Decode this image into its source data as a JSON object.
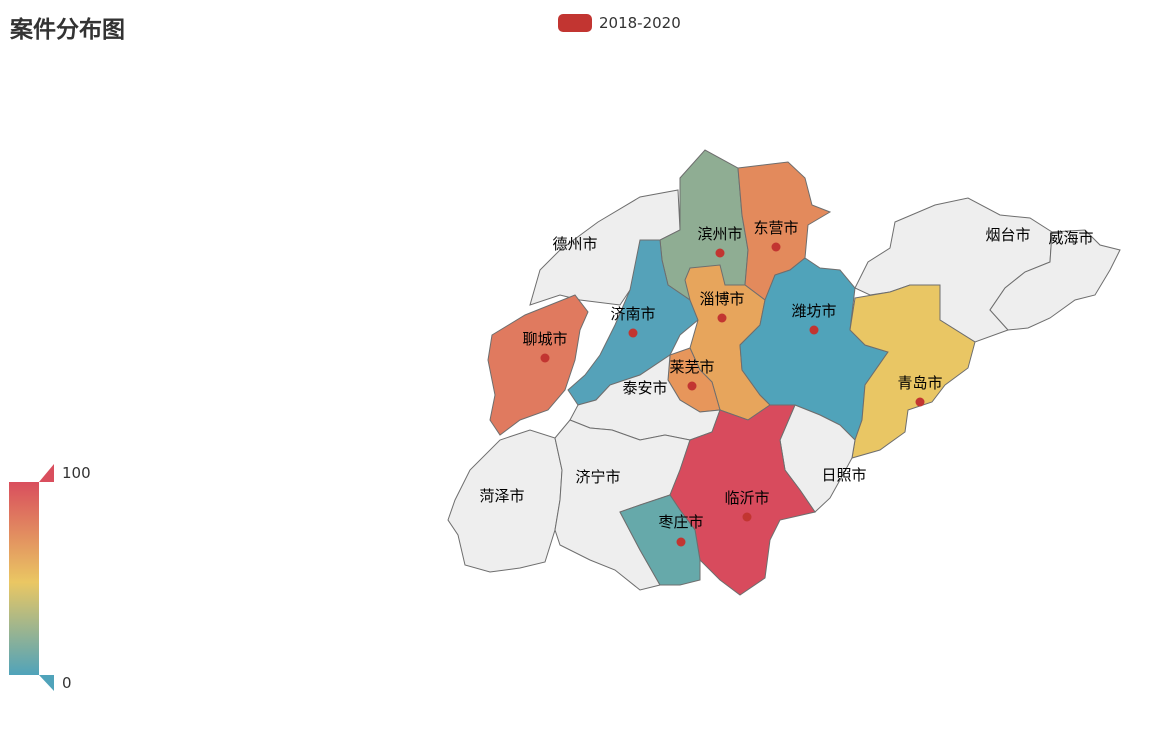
{
  "title": "案件分布图",
  "legend": {
    "label": "2018-2020",
    "color": "#c23531"
  },
  "visual_map": {
    "max_label": "100",
    "min_label": "0",
    "colors": [
      "#d94e5d",
      "#eac763",
      "#50a3ba"
    ]
  },
  "map": {
    "regions": [
      {
        "name": "德州市",
        "color": "#eeeeee",
        "has_dot": false
      },
      {
        "name": "滨州市",
        "color": "#8fad93",
        "has_dot": true
      },
      {
        "name": "东营市",
        "color": "#e38a5c",
        "has_dot": true
      },
      {
        "name": "烟台市",
        "color": "#eeeeee",
        "has_dot": false
      },
      {
        "name": "威海市",
        "color": "#eeeeee",
        "has_dot": false
      },
      {
        "name": "济南市",
        "color": "#55a2b9",
        "has_dot": true
      },
      {
        "name": "淄博市",
        "color": "#e7a55c",
        "has_dot": true
      },
      {
        "name": "潍坊市",
        "color": "#50a3ba",
        "has_dot": true
      },
      {
        "name": "聊城市",
        "color": "#e07a5f",
        "has_dot": true
      },
      {
        "name": "莱芜市",
        "color": "#e7965b",
        "has_dot": true
      },
      {
        "name": "泰安市",
        "color": "#eeeeee",
        "has_dot": false
      },
      {
        "name": "青岛市",
        "color": "#e9c664",
        "has_dot": true
      },
      {
        "name": "日照市",
        "color": "#eeeeee",
        "has_dot": false
      },
      {
        "name": "菏泽市",
        "color": "#eeeeee",
        "has_dot": false
      },
      {
        "name": "济宁市",
        "color": "#eeeeee",
        "has_dot": false
      },
      {
        "name": "临沂市",
        "color": "#d84b5d",
        "has_dot": true
      },
      {
        "name": "枣庄市",
        "color": "#66a9aa",
        "has_dot": true
      }
    ]
  }
}
